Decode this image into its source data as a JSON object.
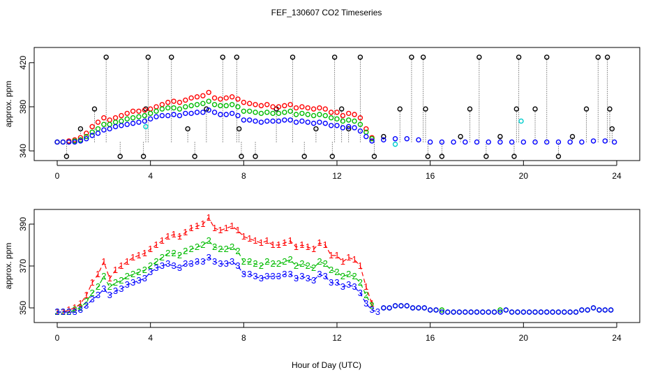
{
  "chart_data": [
    {
      "type": "scatter",
      "title": "FEF_130607  CO2 Timeseries",
      "xlabel": "",
      "ylabel": "approx. ppm",
      "xlim": [
        0,
        24
      ],
      "ylim": [
        335,
        430
      ],
      "x_ticks": [
        0,
        4,
        8,
        12,
        16,
        20,
        24
      ],
      "y_ticks": [
        340,
        380,
        420
      ],
      "grid": false,
      "series": [
        {
          "color": "#ff0000",
          "marker": "circle",
          "x": [
            0.0,
            0.25,
            0.5,
            0.75,
            1.0,
            1.25,
            1.5,
            1.75,
            2.0,
            2.25,
            2.5,
            2.75,
            3.0,
            3.25,
            3.5,
            3.75,
            4.0,
            4.25,
            4.5,
            4.75,
            5.0,
            5.25,
            5.5,
            5.75,
            6.0,
            6.25,
            6.5,
            6.75,
            7.0,
            7.25,
            7.5,
            7.75,
            8.0,
            8.25,
            8.5,
            8.75,
            9.0,
            9.25,
            9.5,
            9.75,
            10.0,
            10.25,
            10.5,
            10.75,
            11.0,
            11.25,
            11.5,
            11.75,
            12.0,
            12.25,
            12.5,
            12.75,
            13.0,
            13.25,
            13.5
          ],
          "y": [
            348,
            348,
            349,
            350,
            352,
            356,
            362,
            366,
            370,
            368,
            370,
            372,
            374,
            376,
            376,
            377,
            378,
            380,
            382,
            384,
            385,
            384,
            386,
            388,
            389,
            390,
            393,
            388,
            387,
            388,
            389,
            387,
            384,
            383,
            382,
            381,
            382,
            380,
            380,
            381,
            382,
            379,
            380,
            379,
            378,
            379,
            378,
            375,
            375,
            372,
            374,
            373,
            370,
            360,
            352
          ]
        },
        {
          "color": "#00bb00",
          "marker": "circle",
          "x": [
            0.0,
            0.25,
            0.5,
            0.75,
            1.0,
            1.25,
            1.5,
            1.75,
            2.0,
            2.25,
            2.5,
            2.75,
            3.0,
            3.25,
            3.5,
            3.75,
            4.0,
            4.25,
            4.5,
            4.75,
            5.0,
            5.25,
            5.5,
            5.75,
            6.0,
            6.25,
            6.5,
            6.75,
            7.0,
            7.25,
            7.5,
            7.75,
            8.0,
            8.25,
            8.5,
            8.75,
            9.0,
            9.25,
            9.5,
            9.75,
            10.0,
            10.25,
            10.5,
            10.75,
            11.0,
            11.25,
            11.5,
            11.75,
            12.0,
            12.25,
            12.5,
            12.75,
            13.0,
            13.25,
            13.5
          ],
          "y": [
            348,
            348,
            348,
            349,
            350,
            353,
            357,
            360,
            364,
            364,
            366,
            367,
            369,
            370,
            371,
            372,
            374,
            376,
            378,
            379,
            379,
            378,
            380,
            381,
            382,
            383,
            385,
            382,
            381,
            381,
            382,
            380,
            376,
            376,
            375,
            374,
            375,
            374,
            374,
            375,
            376,
            373,
            374,
            373,
            372,
            373,
            372,
            370,
            369,
            367,
            368,
            367,
            364,
            357,
            351
          ]
        },
        {
          "color": "#0000ff",
          "marker": "circle",
          "x": [
            0.0,
            0.25,
            0.5,
            0.75,
            1.0,
            1.25,
            1.5,
            1.75,
            2.0,
            2.25,
            2.5,
            2.75,
            3.0,
            3.25,
            3.5,
            3.75,
            4.0,
            4.25,
            4.5,
            4.75,
            5.0,
            5.25,
            5.5,
            5.75,
            6.0,
            6.25,
            6.5,
            6.75,
            7.0,
            7.25,
            7.5,
            7.75,
            8.0,
            8.25,
            8.5,
            8.75,
            9.0,
            9.25,
            9.5,
            9.75,
            10.0,
            10.25,
            10.5,
            10.75,
            11.0,
            11.25,
            11.5,
            11.75,
            12.0,
            12.25,
            12.5,
            12.75,
            13.0,
            13.25,
            13.5,
            14.0,
            14.5,
            15.0,
            15.5,
            16.0,
            16.5,
            17.0,
            17.5,
            18.0,
            18.5,
            19.0,
            19.5,
            20.0,
            20.5,
            21.0,
            21.5,
            22.0,
            22.5,
            23.0,
            23.5,
            23.9
          ],
          "y": [
            348,
            348,
            348,
            348,
            349,
            351,
            354,
            356,
            359,
            360,
            362,
            363,
            364,
            365,
            366,
            367,
            369,
            371,
            372,
            372,
            373,
            372,
            374,
            374,
            375,
            375,
            377,
            375,
            373,
            373,
            374,
            372,
            368,
            368,
            367,
            366,
            367,
            367,
            367,
            368,
            368,
            366,
            367,
            366,
            365,
            366,
            365,
            363,
            363,
            361,
            362,
            361,
            358,
            353,
            349,
            350,
            351,
            351,
            350,
            348,
            348,
            348,
            348,
            348,
            348,
            348,
            348,
            348,
            348,
            348,
            348,
            348,
            348,
            349,
            349,
            348
          ]
        },
        {
          "color": "#00cccc",
          "marker": "circle",
          "x": [
            3.8,
            14.5,
            19.9
          ],
          "y": [
            362,
            346,
            367
          ]
        }
      ],
      "outliers": {
        "color": "#000000",
        "marker": "circle",
        "x": [
          0.4,
          1.0,
          1.6,
          2.1,
          2.7,
          3.7,
          3.8,
          3.9,
          4.9,
          5.6,
          5.9,
          6.4,
          7.1,
          7.7,
          7.8,
          7.9,
          8.5,
          9.4,
          10.1,
          10.6,
          11.1,
          11.8,
          11.9,
          12.2,
          12.5,
          13.0,
          13.6,
          14.0,
          14.7,
          15.2,
          15.7,
          15.8,
          15.9,
          16.5,
          17.3,
          17.7,
          18.1,
          18.4,
          19.0,
          19.6,
          19.7,
          19.8,
          20.5,
          21.0,
          21.5,
          22.1,
          22.7,
          23.2,
          23.6,
          23.7,
          23.8
        ],
        "y": [
          335,
          360,
          378,
          425,
          335,
          335,
          378,
          425,
          425,
          360,
          335,
          378,
          425,
          425,
          360,
          335,
          335,
          378,
          425,
          335,
          360,
          335,
          425,
          378,
          360,
          425,
          335,
          353,
          378,
          425,
          425,
          378,
          335,
          335,
          353,
          378,
          425,
          335,
          353,
          335,
          378,
          425,
          378,
          425,
          335,
          353,
          378,
          425,
          425,
          378,
          360
        ]
      }
    },
    {
      "type": "scatter",
      "title": "",
      "xlabel": "Hour of Day (UTC)",
      "ylabel": "approx. ppm",
      "xlim": [
        0,
        24
      ],
      "ylim": [
        345,
        395
      ],
      "x_ticks": [
        0,
        4,
        8,
        12,
        16,
        20,
        24
      ],
      "y_ticks": [
        350,
        370,
        390
      ],
      "grid": false,
      "series": [
        {
          "color": "#ff0000",
          "marker": "1",
          "line": "dash",
          "x": [
            0.0,
            0.25,
            0.5,
            0.75,
            1.0,
            1.25,
            1.5,
            1.75,
            2.0,
            2.25,
            2.5,
            2.75,
            3.0,
            3.25,
            3.5,
            3.75,
            4.0,
            4.25,
            4.5,
            4.75,
            5.0,
            5.25,
            5.5,
            5.75,
            6.0,
            6.25,
            6.5,
            6.75,
            7.0,
            7.25,
            7.5,
            7.75,
            8.0,
            8.25,
            8.5,
            8.75,
            9.0,
            9.25,
            9.5,
            9.75,
            10.0,
            10.25,
            10.5,
            10.75,
            11.0,
            11.25,
            11.5,
            11.75,
            12.0,
            12.25,
            12.5,
            12.75,
            13.0,
            13.25,
            13.5
          ],
          "y": [
            348,
            348,
            349,
            350,
            352,
            356,
            362,
            366,
            372,
            364,
            368,
            370,
            372,
            374,
            375,
            376,
            378,
            380,
            382,
            384,
            385,
            384,
            386,
            388,
            389,
            390,
            393,
            388,
            387,
            388,
            389,
            387,
            384,
            383,
            382,
            381,
            382,
            380,
            380,
            381,
            382,
            379,
            380,
            379,
            378,
            381,
            380,
            375,
            375,
            372,
            374,
            373,
            370,
            360,
            352
          ]
        },
        {
          "color": "#00bb00",
          "marker": "2",
          "line": "dash",
          "x": [
            0.0,
            0.25,
            0.5,
            0.75,
            1.0,
            1.25,
            1.5,
            1.75,
            2.0,
            2.25,
            2.5,
            2.75,
            3.0,
            3.25,
            3.5,
            3.75,
            4.0,
            4.25,
            4.5,
            4.75,
            5.0,
            5.25,
            5.5,
            5.75,
            6.0,
            6.25,
            6.5,
            6.75,
            7.0,
            7.25,
            7.5,
            7.75,
            8.0,
            8.25,
            8.5,
            8.75,
            9.0,
            9.25,
            9.5,
            9.75,
            10.0,
            10.25,
            10.5,
            10.75,
            11.0,
            11.25,
            11.5,
            11.75,
            12.0,
            12.25,
            12.5,
            12.75,
            13.0,
            13.25,
            13.5
          ],
          "y": [
            348,
            348,
            348,
            349,
            350,
            353,
            357,
            360,
            365,
            360,
            362,
            363,
            365,
            366,
            367,
            368,
            370,
            372,
            374,
            376,
            376,
            375,
            377,
            378,
            379,
            380,
            382,
            379,
            378,
            378,
            379,
            377,
            372,
            372,
            371,
            370,
            372,
            371,
            371,
            372,
            373,
            370,
            371,
            370,
            369,
            372,
            371,
            368,
            367,
            365,
            366,
            365,
            362,
            356,
            351
          ]
        },
        {
          "color": "#0000ff",
          "marker": "3",
          "line": "dash",
          "x": [
            0.0,
            0.25,
            0.5,
            0.75,
            1.0,
            1.25,
            1.5,
            1.75,
            2.0,
            2.25,
            2.5,
            2.75,
            3.0,
            3.25,
            3.5,
            3.75,
            4.0,
            4.25,
            4.5,
            4.75,
            5.0,
            5.25,
            5.5,
            5.75,
            6.0,
            6.25,
            6.5,
            6.75,
            7.0,
            7.25,
            7.5,
            7.75,
            8.0,
            8.25,
            8.5,
            8.75,
            9.0,
            9.25,
            9.5,
            9.75,
            10.0,
            10.25,
            10.5,
            10.75,
            11.0,
            11.25,
            11.5,
            11.75,
            12.0,
            12.25,
            12.5,
            12.75,
            13.0,
            13.25,
            13.5,
            13.75
          ],
          "y": [
            348,
            348,
            348,
            348,
            349,
            351,
            354,
            356,
            359,
            356,
            358,
            359,
            361,
            362,
            363,
            364,
            367,
            369,
            370,
            371,
            370,
            369,
            371,
            371,
            372,
            372,
            374,
            372,
            371,
            371,
            372,
            370,
            366,
            366,
            365,
            364,
            365,
            365,
            365,
            366,
            366,
            364,
            365,
            364,
            363,
            366,
            365,
            362,
            362,
            360,
            361,
            360,
            357,
            352,
            349,
            348
          ]
        },
        {
          "color": "#00bb00",
          "marker": "circle",
          "x": [
            14.0,
            14.25,
            14.5,
            14.75,
            15.0,
            15.25,
            15.5,
            15.75,
            16.0,
            16.25,
            16.5,
            16.75,
            17.0,
            17.25,
            17.5,
            17.75,
            18.0,
            18.25,
            18.5,
            18.75,
            19.0,
            19.25,
            19.5,
            19.75,
            20.0,
            20.25,
            20.5,
            20.75,
            21.0,
            21.25,
            21.5,
            21.75,
            22.0,
            22.25,
            22.5,
            22.75,
            23.0,
            23.25,
            23.5,
            23.75
          ],
          "y": [
            350,
            350,
            351,
            351,
            351,
            350,
            350,
            350,
            349,
            349,
            349,
            348,
            348,
            348,
            348,
            348,
            348,
            348,
            348,
            348,
            349,
            349,
            348,
            348,
            348,
            348,
            348,
            348,
            348,
            348,
            348,
            348,
            348,
            348,
            349,
            349,
            350,
            349,
            349,
            349
          ]
        },
        {
          "color": "#0000ff",
          "marker": "circle",
          "x": [
            14.0,
            14.25,
            14.5,
            14.75,
            15.0,
            15.25,
            15.5,
            15.75,
            16.0,
            16.25,
            16.5,
            16.75,
            17.0,
            17.25,
            17.5,
            17.75,
            18.0,
            18.25,
            18.5,
            18.75,
            19.0,
            19.25,
            19.5,
            19.75,
            20.0,
            20.25,
            20.5,
            20.75,
            21.0,
            21.25,
            21.5,
            21.75,
            22.0,
            22.25,
            22.5,
            22.75,
            23.0,
            23.25,
            23.5,
            23.75
          ],
          "y": [
            350,
            350,
            351,
            351,
            351,
            350,
            350,
            350,
            349,
            349,
            348,
            348,
            348,
            348,
            348,
            348,
            348,
            348,
            348,
            348,
            348,
            349,
            348,
            348,
            348,
            348,
            348,
            348,
            348,
            348,
            348,
            348,
            348,
            348,
            349,
            349,
            350,
            349,
            349,
            349
          ]
        }
      ]
    }
  ],
  "figure_text": {
    "title": "FEF_130607  CO2 Timeseries",
    "xlabel": "Hour of Day (UTC)"
  }
}
